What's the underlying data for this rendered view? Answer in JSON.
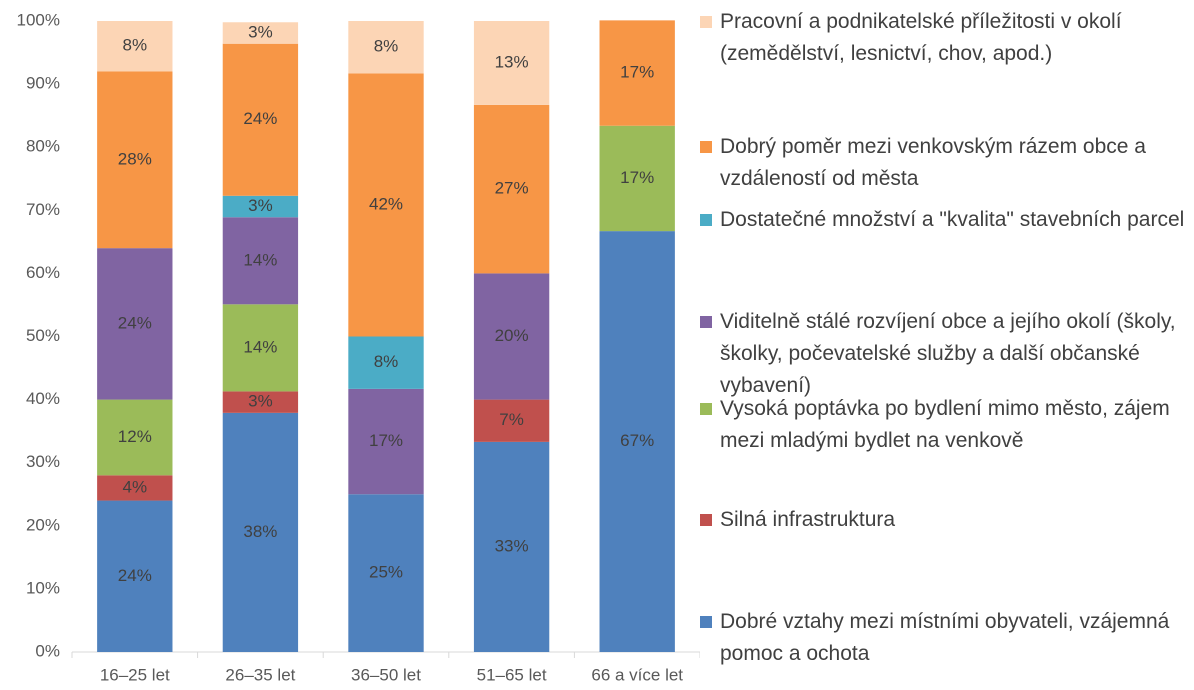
{
  "chart_data": {
    "type": "stacked_bar",
    "categories": [
      "16–25 let",
      "26–35 let",
      "36–50 let",
      "51–65 let",
      "66 a více let"
    ],
    "ylim": [
      0,
      100
    ],
    "yticks": [
      {
        "value": 0,
        "label": "0%"
      },
      {
        "value": 10,
        "label": "10%"
      },
      {
        "value": 20,
        "label": "20%"
      },
      {
        "value": 30,
        "label": "30%"
      },
      {
        "value": 40,
        "label": "40%"
      },
      {
        "value": 50,
        "label": "50%"
      },
      {
        "value": 60,
        "label": "60%"
      },
      {
        "value": 70,
        "label": "70%"
      },
      {
        "value": 80,
        "label": "80%"
      },
      {
        "value": 90,
        "label": "90%"
      },
      {
        "value": 100,
        "label": "100%"
      }
    ],
    "grid": false,
    "legend": "right",
    "series": [
      {
        "name": "Dobré vztahy mezi místními obyvateli, vzájemná pomoc a ochota",
        "color": "#4f81bd",
        "values": [
          24,
          37.9,
          25,
          33.3,
          66.7
        ],
        "value_labels": [
          "24%",
          "38%",
          "25%",
          "33%",
          "67%"
        ]
      },
      {
        "name": "Silná infrastruktura",
        "color": "#c0504d",
        "values": [
          4,
          3.4,
          null,
          6.7,
          null
        ],
        "value_labels": [
          "4%",
          "3%",
          null,
          "7%",
          null
        ]
      },
      {
        "name": "Vysoká poptávka po bydlení mimo město, zájem mezi mladými bydlet na venkově",
        "color": "#9bbb59",
        "values": [
          12,
          13.8,
          null,
          null,
          16.7
        ],
        "value_labels": [
          "12%",
          "14%",
          null,
          null,
          "17%"
        ]
      },
      {
        "name": "Viditelně stálé rozvíjení obce a jejího okolí (školy, školky, počevatelské služby a další občanské vybavení)",
        "color": "#8064a2",
        "values": [
          24,
          13.8,
          16.7,
          20,
          null
        ],
        "value_labels": [
          "24%",
          "14%",
          "17%",
          "20%",
          null
        ]
      },
      {
        "name": "Dostatečné množství a \"kvalita\" stavebních parcel",
        "color": "#4bacc6",
        "values": [
          null,
          3.4,
          8.3,
          null,
          null
        ],
        "value_labels": [
          null,
          "3%",
          "8%",
          null,
          null
        ]
      },
      {
        "name": "Dobrý poměr mezi venkovským rázem obce a vzdáleností od města",
        "color": "#f79646",
        "values": [
          28,
          24.1,
          41.7,
          26.7,
          16.7
        ],
        "value_labels": [
          "28%",
          "24%",
          "42%",
          "27%",
          "17%"
        ]
      },
      {
        "name": "Pracovní a podnikatelské příležitosti v okolí (zemědělství, lesnictví, chov, apod.)",
        "color": "#fcd5b5",
        "values": [
          8,
          3.4,
          8.3,
          13.3,
          null
        ],
        "value_labels": [
          "8%",
          "3%",
          "8%",
          "13%",
          null
        ]
      }
    ]
  }
}
